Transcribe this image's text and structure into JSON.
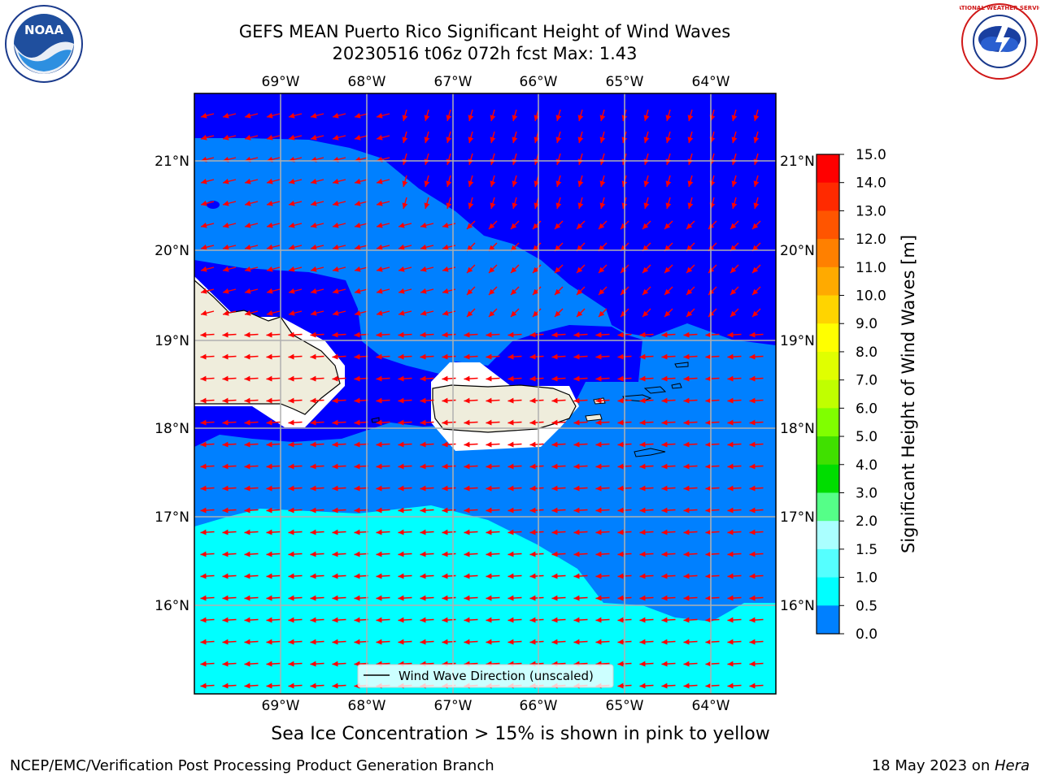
{
  "title": {
    "line1": "GEFS MEAN Puerto Rico Significant Height of Wind Waves",
    "line2": "20230516 t06z 072h fcst   Max: 1.43"
  },
  "map": {
    "lon_labels": [
      "69°W",
      "68°W",
      "67°W",
      "66°W",
      "65°W",
      "64°W"
    ],
    "lat_labels": [
      "21°N",
      "20°N",
      "19°N",
      "18°N",
      "17°N",
      "16°N"
    ],
    "legend_label": "Wind Wave Direction (unscaled)",
    "colors": {
      "band_0_0_5": "#0000ff",
      "band_0_5_1_0": "#0080ff",
      "band_1_0_1_5": "#00ffff",
      "land": "#efeddc",
      "arrows": "#ff0000",
      "grid": "#b0b0b0"
    }
  },
  "colorbar": {
    "label": "Significant Height of Wind Waves [m]",
    "ticks": [
      "15.0",
      "14.0",
      "13.0",
      "12.0",
      "11.0",
      "10.0",
      "9.0",
      "8.0",
      "7.0",
      "6.0",
      "5.0",
      "4.0",
      "3.0",
      "2.0",
      "1.5",
      "1.0",
      "0.5",
      "0.0"
    ],
    "colors": [
      "#ff0000",
      "#ff2a00",
      "#ff5500",
      "#ff8000",
      "#ffaa00",
      "#ffd400",
      "#ffff00",
      "#e0ff00",
      "#c0ff00",
      "#80ff00",
      "#40e000",
      "#00dd00",
      "#55ff88",
      "#aaffff",
      "#55ffff",
      "#00ffff",
      "#0080ff",
      "#0000ff"
    ]
  },
  "logos": {
    "noaa": "NOAA",
    "nws": "NATIONAL WEATHER SERVICE"
  },
  "ice_note": "Sea Ice Concentration > 15% is shown in pink to yellow",
  "footer": {
    "credit": "NCEP/EMC/Verification Post Processing Product Generation Branch",
    "date_prefix": "18 May 2023 on ",
    "date_host": "Hera"
  }
}
